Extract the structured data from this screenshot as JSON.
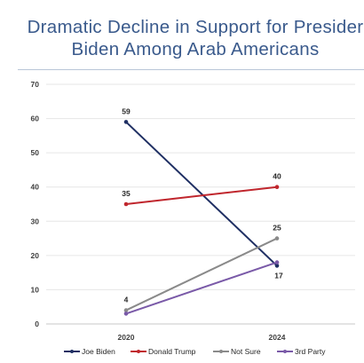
{
  "chart_data": {
    "type": "line",
    "title_lines": [
      "Dramatic Decline in Support for Presider",
      "Biden Among Arab Americans"
    ],
    "x": [
      "2020",
      "2024"
    ],
    "ylim": [
      0,
      70
    ],
    "yticks": [
      0,
      10,
      20,
      30,
      40,
      50,
      60,
      70
    ],
    "grid": true,
    "legend_position": "bottom",
    "series": [
      {
        "name": "Joe Biden",
        "values": [
          59,
          17
        ],
        "color": "#1f2f63",
        "labels": [
          "59",
          "17"
        ]
      },
      {
        "name": "Donald Trump",
        "values": [
          35,
          40
        ],
        "color": "#c0262d",
        "labels": [
          "35",
          "40"
        ]
      },
      {
        "name": "Not Sure",
        "values": [
          4,
          25
        ],
        "color": "#8a8a8a",
        "labels": [
          "4",
          "25"
        ]
      },
      {
        "name": "3rd Party",
        "values": [
          3,
          18
        ],
        "color": "#7a5aa8",
        "labels": [
          "",
          ""
        ]
      }
    ]
  }
}
